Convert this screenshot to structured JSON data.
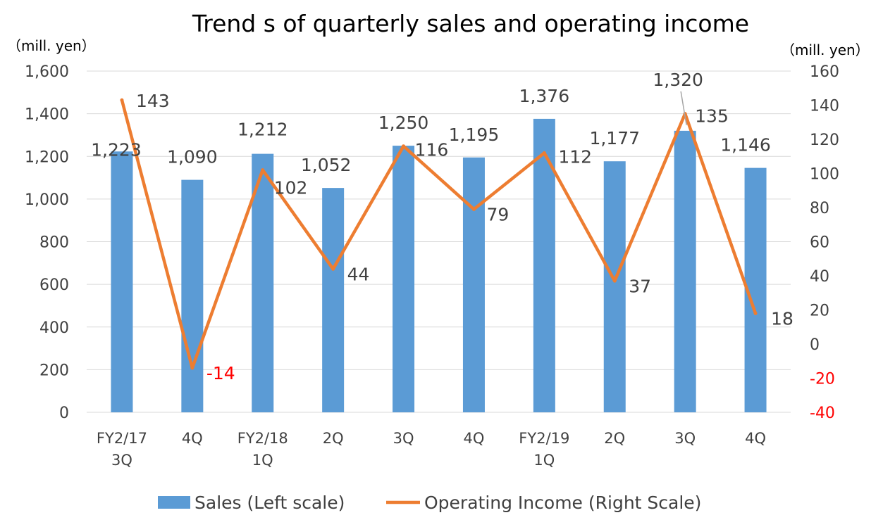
{
  "chart_data": {
    "type": "bar",
    "title": "Trend s of quarterly sales and operating income",
    "left_axis_unit": "（mill. yen）",
    "right_axis_unit": "（mill. yen）",
    "categories": [
      [
        "FY2/17",
        "3Q"
      ],
      [
        "4Q"
      ],
      [
        "FY2/18",
        "1Q"
      ],
      [
        "2Q"
      ],
      [
        "3Q"
      ],
      [
        "4Q"
      ],
      [
        "FY2/19",
        "1Q"
      ],
      [
        "2Q"
      ],
      [
        "3Q"
      ],
      [
        "4Q"
      ]
    ],
    "series": [
      {
        "name": "Sales (Left scale)",
        "type": "bar",
        "axis": "left",
        "color": "#5b9bd5",
        "values": [
          1223,
          1090,
          1212,
          1052,
          1250,
          1195,
          1376,
          1177,
          1320,
          1146
        ],
        "labels": [
          "1,223",
          "1,090",
          "1,212",
          "1,052",
          "1,250",
          "1,195",
          "1,376",
          "1,177",
          "1,320",
          "1,146"
        ]
      },
      {
        "name": "Operating Income (Right Scale)",
        "type": "line",
        "axis": "right",
        "color": "#ed7d31",
        "values": [
          143,
          -14,
          102,
          44,
          116,
          79,
          112,
          37,
          135,
          18
        ],
        "labels": [
          "143",
          "-14",
          "102",
          "44",
          "116",
          "79",
          "112",
          "37",
          "135",
          "18"
        ]
      }
    ],
    "left_axis": {
      "ylim": [
        0,
        1600
      ],
      "ticks": [
        0,
        200,
        400,
        600,
        800,
        1000,
        1200,
        1400,
        1600
      ],
      "tick_labels": [
        "0",
        "200",
        "400",
        "600",
        "800",
        "1,000",
        "1,200",
        "1,400",
        "1,600"
      ]
    },
    "right_axis": {
      "ylim": [
        -40,
        160
      ],
      "ticks": [
        -40,
        -20,
        0,
        20,
        40,
        60,
        80,
        100,
        120,
        140,
        160
      ],
      "tick_labels": [
        "-40",
        "-20",
        "0",
        "20",
        "40",
        "60",
        "80",
        "100",
        "120",
        "140",
        "160"
      ]
    },
    "negative_color": "#ff0000",
    "text_color": "#404040",
    "grid": true,
    "legend_position": "bottom"
  }
}
